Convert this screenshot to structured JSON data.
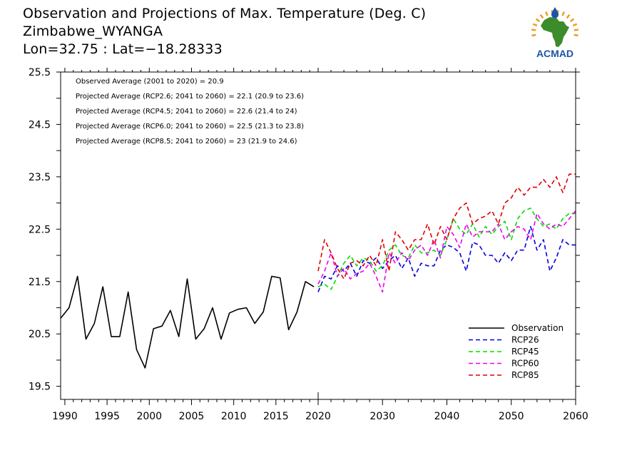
{
  "header": {
    "title": "Observation and Projections of Max. Temperature (Deg. C)",
    "location": "Zimbabwe_WYANGA",
    "coords": "Lon=32.75 : Lat=−18.28333"
  },
  "logo": {
    "text": "ACMAD",
    "icon": "acmad-africa-logo"
  },
  "colors": {
    "observation": "#000000",
    "rcp26": "#0000dd",
    "rcp45": "#00dd00",
    "rcp60": "#ee00ee",
    "rcp85": "#dd0000",
    "logo_blue": "#1a55a8",
    "logo_green": "#3c8c2c",
    "logo_orange": "#e8a020"
  },
  "chart_data": {
    "type": "line",
    "title": "Observation and Projections of Max. Temperature (Deg. C)",
    "xlim": [
      1989.5,
      2060
    ],
    "ylim": [
      19.25,
      25.5
    ],
    "yticks": [
      19.5,
      20.5,
      21.5,
      22.5,
      23.5,
      24.5,
      25.5
    ],
    "xticks": [
      1990,
      1995,
      2000,
      2005,
      2010,
      2015,
      2020,
      2030,
      2040,
      2050,
      2060
    ],
    "axis_break_year": 2020,
    "legend_position": "bottom-right",
    "annotations": [
      "Observed Average (2001 to 2020) = 20.9",
      "Projected Average (RCP2.6; 2041 to 2060) = 22.1 (20.9 to 23.6)",
      "Projected Average (RCP4.5; 2041 to 2060) = 22.6 (21.4 to 24)",
      "Projected Average (RCP6.0; 2041 to 2060) = 22.5 (21.3 to 23.8)",
      "Projected Average (RCP8.5; 2041 to 2060) = 23 (21.9 to 24.6)"
    ],
    "series": [
      {
        "name": "Observation",
        "key": "observation",
        "dash": false,
        "x": [
          1989.5,
          1990.5,
          1991.5,
          1992.5,
          1993.5,
          1994.5,
          1995.5,
          1996.5,
          1997.5,
          1998.5,
          1999.5,
          2000.5,
          2001.5,
          2002.5,
          2003.5,
          2004.5,
          2005.5,
          2006.5,
          2007.5,
          2008.5,
          2009.5,
          2010.5,
          2011.5,
          2012.5,
          2013.5,
          2014.5,
          2015.5,
          2016.5,
          2017.5,
          2018.5,
          2019.5
        ],
        "y": [
          20.8,
          21.0,
          21.6,
          20.4,
          20.7,
          21.4,
          20.45,
          20.45,
          21.3,
          20.2,
          19.85,
          20.6,
          20.65,
          20.95,
          20.45,
          21.55,
          20.4,
          20.6,
          21.0,
          20.4,
          20.9,
          20.97,
          21.0,
          20.7,
          20.92,
          21.6,
          21.57,
          20.58,
          20.92,
          21.5,
          21.4
        ]
      },
      {
        "name": "RCP26",
        "key": "rcp26",
        "dash": true,
        "x": [
          2020,
          2021,
          2022,
          2023,
          2024,
          2025,
          2026,
          2027,
          2028,
          2029,
          2030,
          2031,
          2032,
          2033,
          2034,
          2035,
          2036,
          2037,
          2038,
          2039,
          2040,
          2041,
          2042,
          2043,
          2044,
          2045,
          2046,
          2047,
          2048,
          2049,
          2050,
          2051,
          2052,
          2053,
          2054,
          2055,
          2056,
          2057,
          2058,
          2059,
          2060
        ],
        "y": [
          21.3,
          21.6,
          21.55,
          21.8,
          21.7,
          21.85,
          21.6,
          21.9,
          21.85,
          21.95,
          21.75,
          21.9,
          22.0,
          21.75,
          21.95,
          21.6,
          21.85,
          21.8,
          21.8,
          22.1,
          22.2,
          22.15,
          22.05,
          21.7,
          22.25,
          22.2,
          22.0,
          22.0,
          21.85,
          22.05,
          21.9,
          22.1,
          22.1,
          22.55,
          22.1,
          22.3,
          21.7,
          21.95,
          22.3,
          22.2,
          22.2
        ]
      },
      {
        "name": "RCP45",
        "key": "rcp45",
        "dash": true,
        "x": [
          2020,
          2021,
          2022,
          2023,
          2024,
          2025,
          2026,
          2027,
          2028,
          2029,
          2030,
          2031,
          2032,
          2033,
          2034,
          2035,
          2036,
          2037,
          2038,
          2039,
          2040,
          2041,
          2042,
          2043,
          2044,
          2045,
          2046,
          2047,
          2048,
          2049,
          2050,
          2051,
          2052,
          2053,
          2054,
          2055,
          2056,
          2057,
          2058,
          2059,
          2060
        ],
        "y": [
          21.4,
          21.45,
          21.35,
          21.6,
          21.85,
          22.0,
          21.8,
          21.95,
          21.9,
          21.7,
          21.8,
          22.1,
          22.2,
          22.0,
          21.95,
          22.2,
          22.05,
          22.05,
          22.1,
          22.0,
          22.3,
          22.7,
          22.5,
          22.4,
          22.6,
          22.35,
          22.55,
          22.4,
          22.55,
          22.65,
          22.3,
          22.7,
          22.85,
          22.9,
          22.7,
          22.55,
          22.6,
          22.5,
          22.7,
          22.8,
          22.8
        ]
      },
      {
        "name": "RCP60",
        "key": "rcp60",
        "dash": true,
        "x": [
          2020,
          2021,
          2022,
          2023,
          2024,
          2025,
          2026,
          2027,
          2028,
          2029,
          2030,
          2031,
          2032,
          2033,
          2034,
          2035,
          2036,
          2037,
          2038,
          2039,
          2040,
          2041,
          2042,
          2043,
          2044,
          2045,
          2046,
          2047,
          2048,
          2049,
          2050,
          2051,
          2052,
          2053,
          2054,
          2055,
          2056,
          2057,
          2058,
          2059,
          2060
        ],
        "y": [
          21.45,
          21.7,
          22.05,
          21.6,
          21.75,
          21.55,
          21.65,
          21.7,
          21.85,
          21.6,
          21.3,
          22.05,
          21.85,
          22.05,
          21.9,
          22.1,
          22.2,
          22.0,
          22.3,
          21.95,
          22.55,
          22.4,
          22.15,
          22.6,
          22.35,
          22.45,
          22.45,
          22.45,
          22.6,
          22.3,
          22.45,
          22.55,
          22.5,
          22.3,
          22.8,
          22.6,
          22.5,
          22.6,
          22.55,
          22.7,
          22.85
        ]
      },
      {
        "name": "RCP85",
        "key": "rcp85",
        "dash": true,
        "x": [
          2020,
          2021,
          2022,
          2023,
          2024,
          2025,
          2026,
          2027,
          2028,
          2029,
          2030,
          2031,
          2032,
          2033,
          2034,
          2035,
          2036,
          2037,
          2038,
          2039,
          2040,
          2041,
          2042,
          2043,
          2044,
          2045,
          2046,
          2047,
          2048,
          2049,
          2050,
          2051,
          2052,
          2053,
          2054,
          2055,
          2056,
          2057,
          2058,
          2059,
          2060
        ],
        "y": [
          21.7,
          22.3,
          22.05,
          21.75,
          21.55,
          21.85,
          21.9,
          21.8,
          22.0,
          21.8,
          22.3,
          21.7,
          22.45,
          22.3,
          22.1,
          22.3,
          22.3,
          22.6,
          22.2,
          22.55,
          22.3,
          22.7,
          22.9,
          23.0,
          22.6,
          22.7,
          22.75,
          22.85,
          22.6,
          23.0,
          23.1,
          23.3,
          23.15,
          23.3,
          23.3,
          23.45,
          23.3,
          23.5,
          23.2,
          23.55,
          23.55
        ]
      }
    ]
  }
}
